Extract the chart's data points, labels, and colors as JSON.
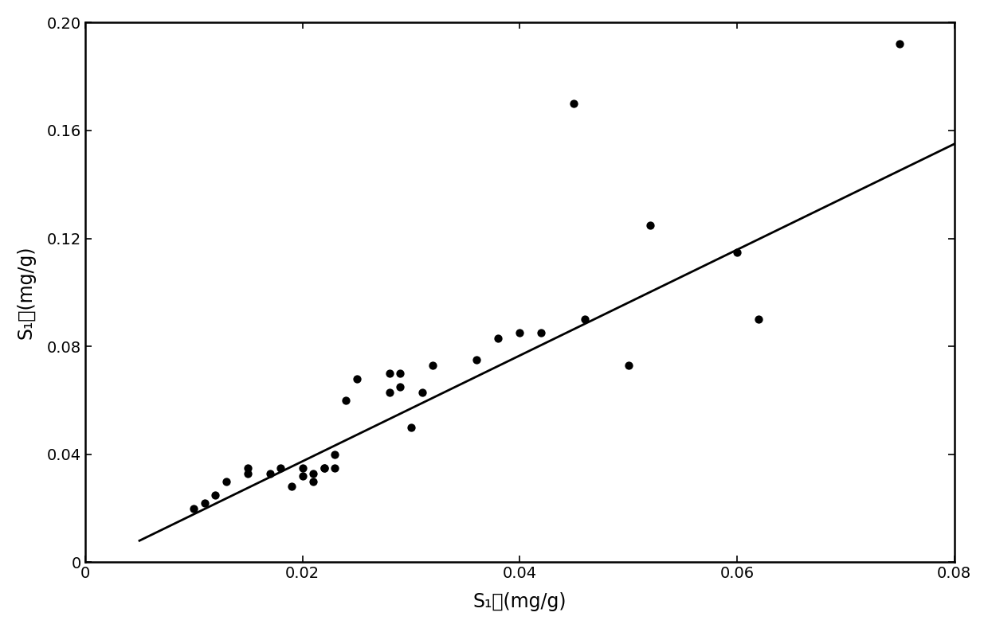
{
  "scatter_x": [
    0.01,
    0.011,
    0.012,
    0.013,
    0.015,
    0.015,
    0.017,
    0.018,
    0.019,
    0.02,
    0.02,
    0.021,
    0.021,
    0.022,
    0.022,
    0.023,
    0.023,
    0.024,
    0.025,
    0.028,
    0.028,
    0.029,
    0.029,
    0.03,
    0.031,
    0.032,
    0.036,
    0.038,
    0.04,
    0.042,
    0.045,
    0.046,
    0.05,
    0.052,
    0.06,
    0.062,
    0.075
  ],
  "scatter_y": [
    0.02,
    0.022,
    0.025,
    0.03,
    0.033,
    0.035,
    0.033,
    0.035,
    0.028,
    0.032,
    0.035,
    0.03,
    0.033,
    0.035,
    0.035,
    0.035,
    0.04,
    0.06,
    0.068,
    0.063,
    0.07,
    0.065,
    0.07,
    0.05,
    0.063,
    0.073,
    0.075,
    0.083,
    0.085,
    0.085,
    0.17,
    0.09,
    0.073,
    0.125,
    0.115,
    0.09,
    0.192
  ],
  "line_x": [
    0.005,
    0.08
  ],
  "line_y": [
    0.008,
    0.155
  ],
  "xlim": [
    0,
    0.08
  ],
  "ylim": [
    0,
    0.2
  ],
  "xticks": [
    0,
    0.02,
    0.04,
    0.06,
    0.08
  ],
  "yticks": [
    0,
    0.04,
    0.08,
    0.12,
    0.16,
    0.2
  ],
  "xlabel_plain": "S₁测(mg/g)",
  "ylabel_plain": "S₁校(mg/g)",
  "scatter_color": "#000000",
  "line_color": "#000000",
  "marker_size": 55,
  "background_color": "#ffffff",
  "tick_fontsize": 14,
  "label_fontsize": 17,
  "spine_linewidth": 1.8
}
